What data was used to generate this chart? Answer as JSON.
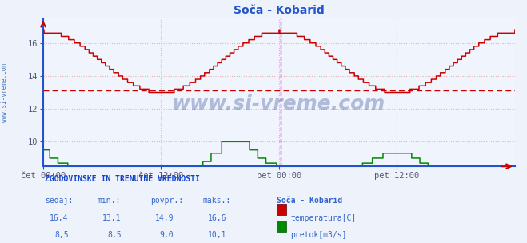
{
  "title": "Soča - Kobarid",
  "title_color": "#2255cc",
  "bg_color": "#eef2fa",
  "plot_bg_color": "#f0f4fc",
  "watermark": "www.si-vreme.com",
  "xlim": [
    0,
    576
  ],
  "ylim": [
    8.5,
    17.5
  ],
  "yticks": [
    10,
    12,
    14,
    16
  ],
  "xtick_labels": [
    "čet 00:00",
    "čet 12:00",
    "pet 00:00",
    "pet 12:00"
  ],
  "xtick_positions": [
    0,
    144,
    288,
    432
  ],
  "grid_color_h": "#e8b0b0",
  "grid_color_v": "#e8b0b0",
  "avg_line_value": 13.1,
  "avg_line_color": "#cc0000",
  "current_marker_x": 290,
  "current_marker_color": "#dd00dd",
  "temp_color": "#cc0000",
  "flow_color": "#008800",
  "axis_color": "#2255cc",
  "tick_color": "#555577",
  "legend_title": "Soča - Kobarid",
  "stats_header": "ZGODOVINSKE IN TRENUTNE VREDNOSTI",
  "stats_cols": [
    "sedaj:",
    "min.:",
    "povpr.:",
    "maks.:"
  ],
  "temp_stats": [
    "16,4",
    "13,1",
    "14,9",
    "16,6"
  ],
  "flow_stats": [
    "8,5",
    "8,5",
    "9,0",
    "10,1"
  ],
  "temp_label": "temperatura[C]",
  "flow_label": "pretok[m3/s]",
  "n_points": 577
}
